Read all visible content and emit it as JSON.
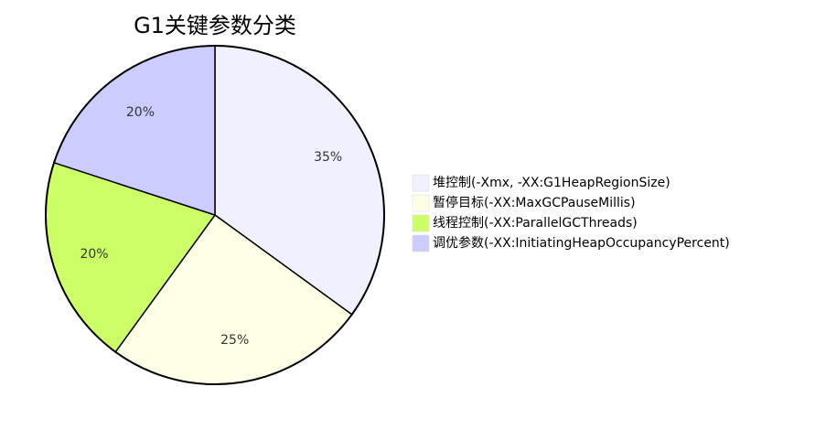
{
  "chart_data": {
    "type": "pie",
    "title": "G1关键参数分类",
    "legend_position": "right",
    "slices": [
      {
        "label": "堆控制(-Xmx, -XX:G1HeapRegionSize)",
        "value": 35,
        "display": "35%",
        "color": "#f0f0ff"
      },
      {
        "label": "暂停目标(-XX:MaxGCPauseMillis)",
        "value": 25,
        "display": "25%",
        "color": "#ffffe6"
      },
      {
        "label": "线程控制(-XX:ParallelGCThreads)",
        "value": 20,
        "display": "20%",
        "color": "#ccff66"
      },
      {
        "label": "调优参数(-XX:InitiatingHeapOccupancyPercent)",
        "value": 20,
        "display": "20%",
        "color": "#ccccff"
      }
    ]
  }
}
